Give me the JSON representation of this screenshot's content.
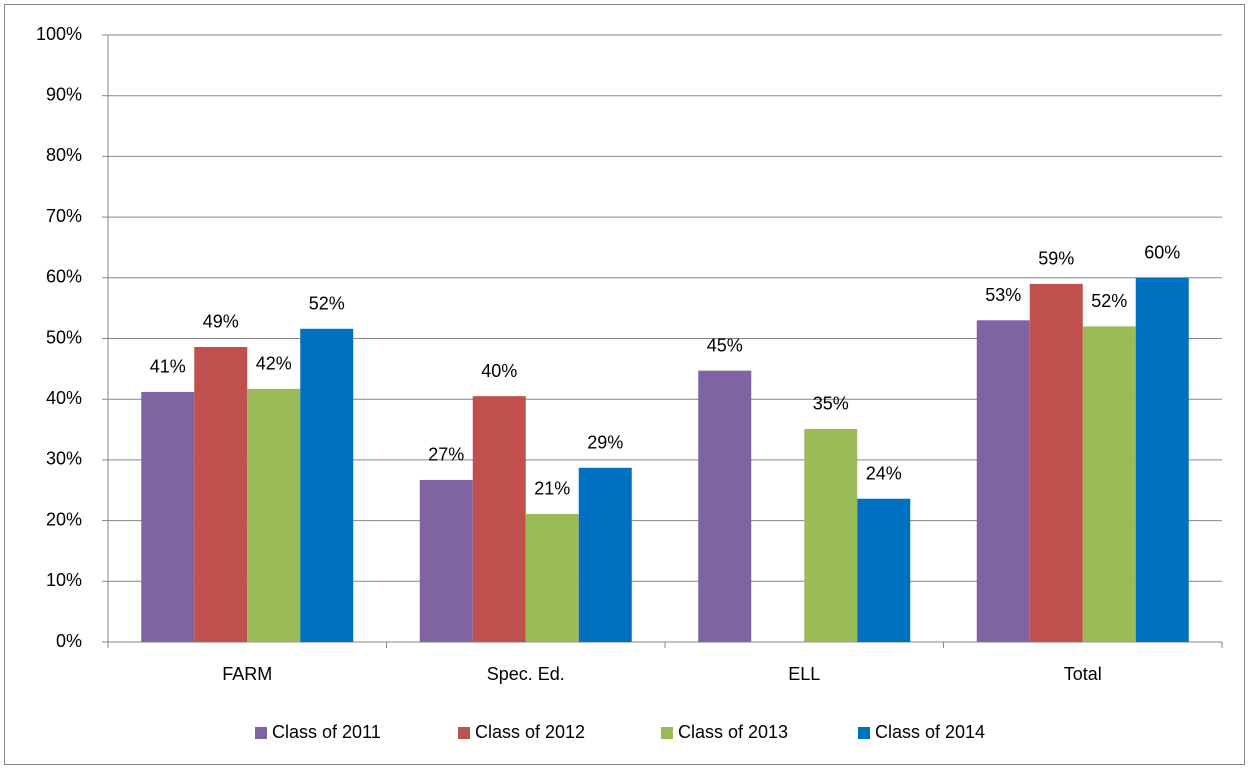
{
  "chart_data": {
    "type": "bar",
    "categories": [
      "FARM",
      "Spec. Ed.",
      "ELL",
      "Total"
    ],
    "series": [
      {
        "name": "Class of 2011",
        "color": "#8064a2",
        "values": [
          41.2,
          26.7,
          44.7,
          53
        ],
        "value_labels": [
          "41%",
          "27%",
          "45%",
          "53%"
        ]
      },
      {
        "name": "Class of 2012",
        "color": "#c0504d",
        "values": [
          48.6,
          40.5,
          null,
          59
        ],
        "value_labels": [
          "49%",
          "40%",
          null,
          "59%"
        ]
      },
      {
        "name": "Class of 2013",
        "color": "#9bbb59",
        "values": [
          41.7,
          21.1,
          35.1,
          52
        ],
        "value_labels": [
          "42%",
          "21%",
          "35%",
          "52%"
        ]
      },
      {
        "name": "Class of 2014",
        "color": "#0070c0",
        "values": [
          51.6,
          28.7,
          23.6,
          60
        ],
        "value_labels": [
          "52%",
          "29%",
          "24%",
          "60%"
        ]
      }
    ],
    "ylim": [
      0,
      100
    ],
    "yticks": [
      {
        "value": 0,
        "label": "0%"
      },
      {
        "value": 10,
        "label": "10%"
      },
      {
        "value": 20,
        "label": "20%"
      },
      {
        "value": 30,
        "label": "30%"
      },
      {
        "value": 40,
        "label": "40%"
      },
      {
        "value": 50,
        "label": "50%"
      },
      {
        "value": 60,
        "label": "60%"
      },
      {
        "value": 70,
        "label": "70%"
      },
      {
        "value": 80,
        "label": "80%"
      },
      {
        "value": 90,
        "label": "90%"
      },
      {
        "value": 100,
        "label": "100%"
      }
    ],
    "grid": true,
    "legend": "bottom"
  }
}
